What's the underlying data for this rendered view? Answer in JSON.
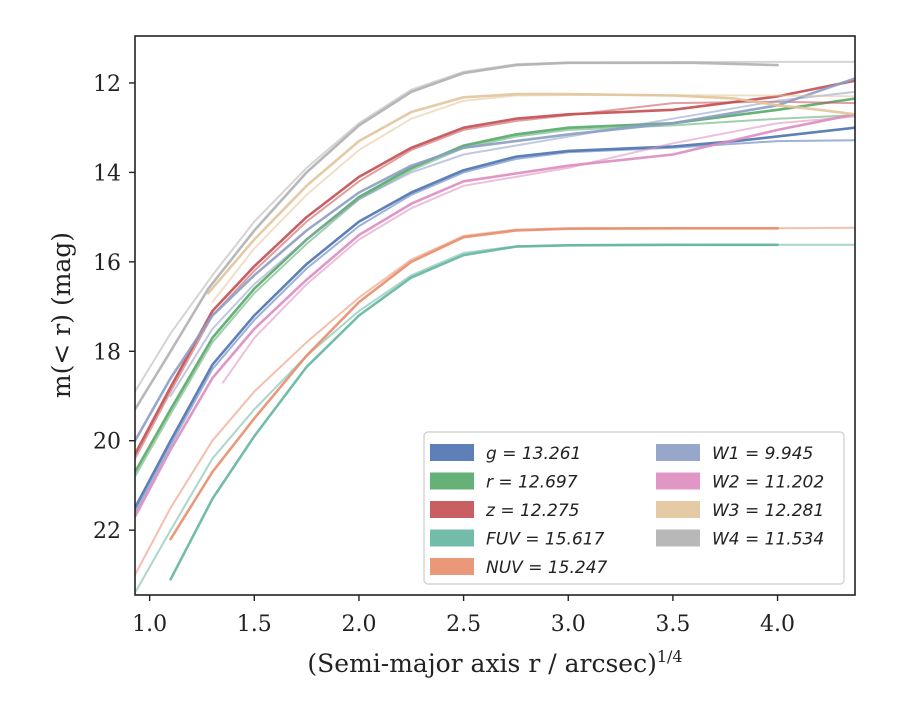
{
  "chart_data": {
    "type": "line",
    "title": "",
    "xlabel": "(Semi-major axis r / arcsec)",
    "xlabel_exponent": "1/4",
    "ylabel": "m(< r) (mag)",
    "xlim": [
      0.93,
      4.37
    ],
    "ylim": [
      23.45,
      10.95
    ],
    "y_inverted": true,
    "grid": false,
    "legend_placement": "lower-right",
    "legend_columns": 2,
    "xticks": [
      1.0,
      1.5,
      2.0,
      2.5,
      3.0,
      3.5,
      4.0
    ],
    "xtick_labels": [
      "1.0",
      "1.5",
      "2.0",
      "2.5",
      "3.0",
      "3.5",
      "4.0"
    ],
    "yticks": [
      12,
      14,
      16,
      18,
      20,
      22
    ],
    "ytick_labels": [
      "12",
      "14",
      "16",
      "18",
      "20",
      "22"
    ],
    "series": [
      {
        "name": "g",
        "legend_value": "13.261",
        "color": "#4c72b0",
        "profiles": [
          [
            [
              0.93,
              21.5
            ],
            [
              1.1,
              20.0
            ],
            [
              1.3,
              18.3
            ],
            [
              1.5,
              17.2
            ],
            [
              1.75,
              16.05
            ],
            [
              2.0,
              15.1
            ],
            [
              2.25,
              14.45
            ],
            [
              2.5,
              13.95
            ],
            [
              2.75,
              13.65
            ],
            [
              3.0,
              13.52
            ],
            [
              3.5,
              13.42
            ],
            [
              3.8,
              13.3
            ],
            [
              4.37,
              13.0
            ]
          ],
          [
            [
              0.93,
              21.6
            ],
            [
              1.1,
              20.1
            ],
            [
              1.3,
              18.4
            ],
            [
              1.5,
              17.3
            ],
            [
              1.75,
              16.15
            ],
            [
              2.0,
              15.2
            ],
            [
              2.25,
              14.5
            ],
            [
              2.5,
              14.0
            ],
            [
              2.75,
              13.7
            ],
            [
              3.0,
              13.55
            ],
            [
              3.5,
              13.45
            ],
            [
              4.0,
              13.3
            ],
            [
              4.37,
              13.28
            ]
          ]
        ]
      },
      {
        "name": "r",
        "legend_value": "12.697",
        "color": "#55a868",
        "profiles": [
          [
            [
              0.93,
              20.7
            ],
            [
              1.1,
              19.3
            ],
            [
              1.3,
              17.7
            ],
            [
              1.5,
              16.6
            ],
            [
              1.75,
              15.5
            ],
            [
              2.0,
              14.55
            ],
            [
              2.25,
              13.9
            ],
            [
              2.5,
              13.4
            ],
            [
              2.75,
              13.15
            ],
            [
              3.0,
              13.0
            ],
            [
              3.5,
              12.9
            ],
            [
              4.0,
              12.6
            ],
            [
              4.37,
              12.35
            ]
          ],
          [
            [
              0.93,
              20.8
            ],
            [
              1.1,
              19.4
            ],
            [
              1.3,
              17.8
            ],
            [
              1.5,
              16.7
            ],
            [
              1.75,
              15.6
            ],
            [
              2.0,
              14.6
            ],
            [
              2.25,
              13.95
            ],
            [
              2.5,
              13.45
            ],
            [
              2.75,
              13.2
            ],
            [
              3.0,
              13.05
            ],
            [
              3.5,
              12.95
            ],
            [
              4.0,
              12.8
            ],
            [
              4.37,
              12.72
            ]
          ]
        ]
      },
      {
        "name": "z",
        "legend_value": "12.275",
        "color": "#c44e52",
        "profiles": [
          [
            [
              0.93,
              20.3
            ],
            [
              1.1,
              18.8
            ],
            [
              1.3,
              17.1
            ],
            [
              1.5,
              16.1
            ],
            [
              1.75,
              15.0
            ],
            [
              2.0,
              14.1
            ],
            [
              2.25,
              13.45
            ],
            [
              2.5,
              13.0
            ],
            [
              2.75,
              12.8
            ],
            [
              3.0,
              12.7
            ],
            [
              3.5,
              12.6
            ],
            [
              4.0,
              12.3
            ],
            [
              4.37,
              11.95
            ]
          ],
          [
            [
              0.93,
              20.4
            ],
            [
              1.1,
              18.9
            ],
            [
              1.3,
              17.2
            ],
            [
              1.5,
              16.2
            ],
            [
              1.75,
              15.1
            ],
            [
              2.0,
              14.2
            ],
            [
              2.25,
              13.5
            ],
            [
              2.5,
              13.05
            ],
            [
              2.75,
              12.85
            ],
            [
              3.0,
              12.72
            ],
            [
              3.5,
              12.45
            ],
            [
              4.0,
              12.42
            ],
            [
              4.37,
              12.45
            ]
          ]
        ]
      },
      {
        "name": "FUV",
        "legend_value": "15.617",
        "color": "#64b5a0",
        "profiles": [
          [
            [
              1.1,
              23.1
            ],
            [
              1.3,
              21.3
            ],
            [
              1.5,
              19.9
            ],
            [
              1.75,
              18.35
            ],
            [
              2.0,
              17.2
            ],
            [
              2.25,
              16.35
            ],
            [
              2.5,
              15.85
            ],
            [
              2.75,
              15.66
            ],
            [
              3.0,
              15.63
            ],
            [
              3.5,
              15.62
            ],
            [
              4.0,
              15.62
            ]
          ],
          [
            [
              0.93,
              23.4
            ],
            [
              1.1,
              22.0
            ],
            [
              1.3,
              20.4
            ],
            [
              1.5,
              19.3
            ],
            [
              1.75,
              18.1
            ],
            [
              2.0,
              17.1
            ],
            [
              2.25,
              16.3
            ],
            [
              2.5,
              15.8
            ],
            [
              2.75,
              15.65
            ],
            [
              3.0,
              15.63
            ],
            [
              4.0,
              15.62
            ],
            [
              4.37,
              15.62
            ]
          ]
        ]
      },
      {
        "name": "NUV",
        "legend_value": "15.247",
        "color": "#e98d6b",
        "profiles": [
          [
            [
              1.1,
              22.2
            ],
            [
              1.3,
              20.7
            ],
            [
              1.5,
              19.5
            ],
            [
              1.75,
              18.1
            ],
            [
              2.0,
              16.9
            ],
            [
              2.25,
              16.0
            ],
            [
              2.5,
              15.45
            ],
            [
              2.75,
              15.3
            ],
            [
              3.0,
              15.26
            ],
            [
              3.5,
              15.25
            ],
            [
              4.0,
              15.25
            ]
          ],
          [
            [
              0.93,
              23.0
            ],
            [
              1.1,
              21.5
            ],
            [
              1.3,
              20.0
            ],
            [
              1.5,
              18.9
            ],
            [
              1.75,
              17.8
            ],
            [
              2.0,
              16.8
            ],
            [
              2.25,
              15.95
            ],
            [
              2.5,
              15.42
            ],
            [
              2.75,
              15.28
            ],
            [
              3.0,
              15.25
            ],
            [
              4.0,
              15.25
            ],
            [
              4.37,
              15.24
            ]
          ]
        ]
      },
      {
        "name": "W1",
        "legend_value": "9.945",
        "color": "#8c9dc4",
        "profiles": [
          [
            [
              0.93,
              20.0
            ],
            [
              1.1,
              18.6
            ],
            [
              1.3,
              17.2
            ],
            [
              1.5,
              16.3
            ],
            [
              1.75,
              15.3
            ],
            [
              2.0,
              14.45
            ],
            [
              2.25,
              13.85
            ],
            [
              2.5,
              13.45
            ],
            [
              3.0,
              13.15
            ],
            [
              3.5,
              12.9
            ],
            [
              4.0,
              12.5
            ],
            [
              4.37,
              11.9
            ]
          ],
          [
            [
              1.1,
              19.0
            ],
            [
              1.3,
              17.5
            ],
            [
              1.5,
              16.5
            ],
            [
              1.75,
              15.5
            ],
            [
              2.0,
              14.6
            ],
            [
              2.25,
              14.0
            ],
            [
              2.5,
              13.6
            ],
            [
              3.0,
              13.2
            ],
            [
              3.5,
              12.8
            ],
            [
              4.0,
              12.4
            ],
            [
              4.37,
              12.2
            ]
          ]
        ]
      },
      {
        "name": "W2",
        "legend_value": "11.202",
        "color": "#dd8cc0",
        "profiles": [
          [
            [
              0.93,
              21.7
            ],
            [
              1.1,
              20.2
            ],
            [
              1.3,
              18.6
            ],
            [
              1.5,
              17.5
            ],
            [
              1.75,
              16.4
            ],
            [
              2.0,
              15.4
            ],
            [
              2.25,
              14.7
            ],
            [
              2.5,
              14.2
            ],
            [
              3.0,
              13.85
            ],
            [
              3.5,
              13.6
            ],
            [
              4.0,
              13.05
            ],
            [
              4.37,
              12.7
            ]
          ],
          [
            [
              1.35,
              18.7
            ],
            [
              1.5,
              17.7
            ],
            [
              1.75,
              16.5
            ],
            [
              2.0,
              15.5
            ],
            [
              2.25,
              14.8
            ],
            [
              2.5,
              14.3
            ],
            [
              3.0,
              13.9
            ],
            [
              3.5,
              13.35
            ],
            [
              4.0,
              12.9
            ],
            [
              4.37,
              12.75
            ]
          ]
        ]
      },
      {
        "name": "W3",
        "legend_value": "12.281",
        "color": "#e1c49b",
        "profiles": [
          [
            [
              1.28,
              16.7
            ],
            [
              1.5,
              15.5
            ],
            [
              1.75,
              14.3
            ],
            [
              2.0,
              13.3
            ],
            [
              2.25,
              12.65
            ],
            [
              2.5,
              12.32
            ],
            [
              2.75,
              12.25
            ],
            [
              3.0,
              12.25
            ],
            [
              3.5,
              12.28
            ],
            [
              3.8,
              12.35
            ],
            [
              4.0,
              12.5
            ],
            [
              4.2,
              12.6
            ],
            [
              4.37,
              12.7
            ]
          ],
          [
            [
              1.3,
              16.9
            ],
            [
              1.5,
              15.7
            ],
            [
              1.75,
              14.5
            ],
            [
              2.0,
              13.5
            ],
            [
              2.25,
              12.8
            ],
            [
              2.5,
              12.4
            ],
            [
              2.75,
              12.28
            ],
            [
              3.0,
              12.27
            ],
            [
              4.0,
              12.28
            ],
            [
              4.37,
              12.3
            ]
          ]
        ]
      },
      {
        "name": "W4",
        "legend_value": "11.534",
        "color": "#b0b0b0",
        "profiles": [
          [
            [
              0.93,
              19.3
            ],
            [
              1.1,
              18.0
            ],
            [
              1.28,
              16.6
            ],
            [
              1.5,
              15.3
            ],
            [
              1.75,
              14.0
            ],
            [
              2.0,
              12.95
            ],
            [
              2.25,
              12.2
            ],
            [
              2.5,
              11.78
            ],
            [
              2.75,
              11.6
            ],
            [
              3.0,
              11.55
            ],
            [
              3.3,
              11.55
            ],
            [
              3.6,
              11.55
            ],
            [
              4.0,
              11.6
            ]
          ],
          [
            [
              0.93,
              18.9
            ],
            [
              1.1,
              17.6
            ],
            [
              1.3,
              16.3
            ],
            [
              1.5,
              15.1
            ],
            [
              1.75,
              13.9
            ],
            [
              2.0,
              12.9
            ],
            [
              2.25,
              12.15
            ],
            [
              2.5,
              11.75
            ],
            [
              2.75,
              11.58
            ],
            [
              3.0,
              11.54
            ],
            [
              4.0,
              11.53
            ],
            [
              4.37,
              11.53
            ]
          ]
        ]
      }
    ]
  }
}
